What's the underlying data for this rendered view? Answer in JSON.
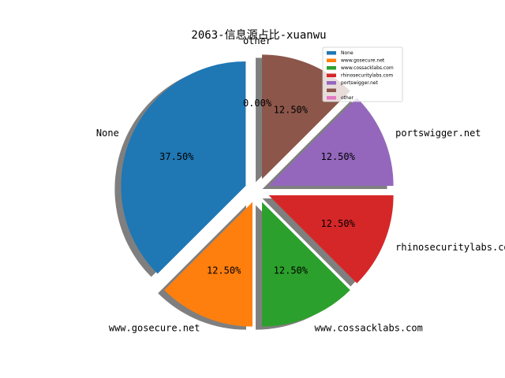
{
  "chart_data": {
    "type": "pie",
    "title": "2063-信息源占比-xuanwu",
    "labels": [
      "None",
      "www.gosecure.net",
      "www.cossacklabs.com",
      "rhinosecuritylabs.com",
      "portswigger.net",
      "",
      "other"
    ],
    "values": [
      37.5,
      12.5,
      12.5,
      12.5,
      12.5,
      12.5,
      0.0
    ],
    "percent_labels": [
      "37.50%",
      "12.50%",
      "12.50%",
      "12.50%",
      "12.50%",
      "12.50%",
      "0.00%"
    ],
    "colors": [
      "#1f77b4",
      "#ff7f0e",
      "#2ca02c",
      "#d62728",
      "#9467bd",
      "#8c564b",
      "#e377c2"
    ],
    "legend": {
      "placement": "top-right",
      "entries": [
        "None",
        "www.gosecure.net",
        "www.cossacklabs.com",
        "rhinosecuritylabs.com",
        "portswigger.net",
        "",
        "other"
      ]
    },
    "shadow": true,
    "exploded": true,
    "start_angle_deg": 90,
    "direction": "counterclockwise"
  }
}
